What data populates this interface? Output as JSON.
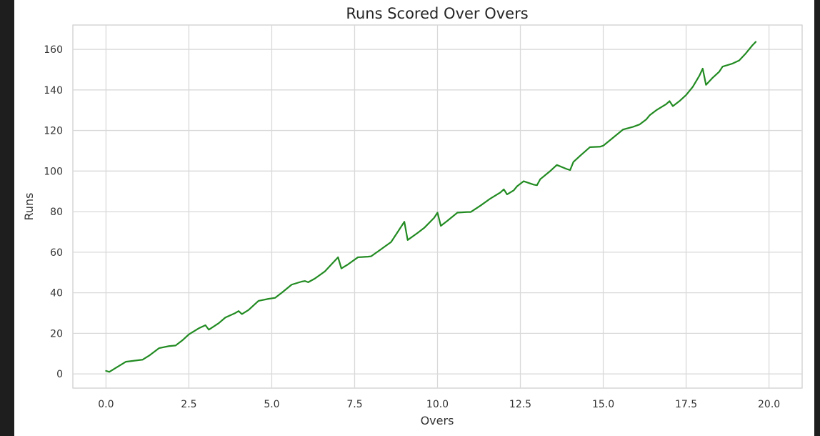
{
  "chart_data": {
    "type": "line",
    "title": "Runs Scored Over Overs",
    "xlabel": "Overs",
    "ylabel": "Runs",
    "xlim": [
      -1.0,
      21.0
    ],
    "ylim": [
      -7,
      172
    ],
    "xticks": [
      0.0,
      2.5,
      5.0,
      7.5,
      10.0,
      12.5,
      15.0,
      17.5,
      20.0
    ],
    "xtick_labels": [
      "0.0",
      "2.5",
      "5.0",
      "7.5",
      "10.0",
      "12.5",
      "15.0",
      "17.5",
      "20.0"
    ],
    "yticks": [
      0,
      20,
      40,
      60,
      80,
      100,
      120,
      140,
      160
    ],
    "ytick_labels": [
      "0",
      "20",
      "40",
      "60",
      "80",
      "100",
      "120",
      "140",
      "160"
    ],
    "grid": true,
    "legend": "none",
    "line_color": "#228b22",
    "series": [
      {
        "values": [
          [
            0.0,
            1.5
          ],
          [
            0.1,
            1.0
          ],
          [
            0.3,
            3.0
          ],
          [
            0.6,
            6.0
          ],
          [
            0.9,
            6.6
          ],
          [
            1.1,
            7.0
          ],
          [
            1.3,
            9.0
          ],
          [
            1.6,
            12.7
          ],
          [
            1.9,
            13.7
          ],
          [
            2.1,
            14.0
          ],
          [
            2.3,
            16.5
          ],
          [
            2.5,
            19.5
          ],
          [
            2.8,
            22.5
          ],
          [
            3.0,
            24.0
          ],
          [
            3.1,
            21.8
          ],
          [
            3.4,
            25.0
          ],
          [
            3.6,
            27.8
          ],
          [
            3.9,
            30.0
          ],
          [
            4.0,
            31.0
          ],
          [
            4.1,
            29.5
          ],
          [
            4.3,
            31.5
          ],
          [
            4.6,
            36.0
          ],
          [
            4.9,
            37.0
          ],
          [
            5.1,
            37.5
          ],
          [
            5.3,
            40.0
          ],
          [
            5.6,
            44.0
          ],
          [
            5.9,
            45.5
          ],
          [
            6.0,
            45.8
          ],
          [
            6.1,
            45.2
          ],
          [
            6.3,
            47.0
          ],
          [
            6.6,
            50.5
          ],
          [
            6.8,
            54.0
          ],
          [
            7.0,
            57.5
          ],
          [
            7.1,
            52.0
          ],
          [
            7.3,
            54.0
          ],
          [
            7.6,
            57.5
          ],
          [
            7.9,
            57.8
          ],
          [
            8.0,
            58.0
          ],
          [
            8.3,
            61.5
          ],
          [
            8.6,
            65.0
          ],
          [
            8.8,
            70.0
          ],
          [
            9.0,
            75.0
          ],
          [
            9.1,
            66.0
          ],
          [
            9.4,
            69.5
          ],
          [
            9.6,
            72.0
          ],
          [
            9.9,
            77.0
          ],
          [
            10.0,
            79.5
          ],
          [
            10.1,
            73.0
          ],
          [
            10.3,
            75.5
          ],
          [
            10.6,
            79.5
          ],
          [
            10.9,
            79.8
          ],
          [
            11.0,
            79.8
          ],
          [
            11.3,
            83.0
          ],
          [
            11.6,
            86.5
          ],
          [
            11.9,
            89.5
          ],
          [
            12.0,
            91.0
          ],
          [
            12.1,
            88.5
          ],
          [
            12.3,
            90.5
          ],
          [
            12.4,
            92.5
          ],
          [
            12.6,
            95.0
          ],
          [
            12.9,
            93.3
          ],
          [
            13.0,
            93.0
          ],
          [
            13.1,
            96.0
          ],
          [
            13.4,
            100.0
          ],
          [
            13.6,
            103.0
          ],
          [
            13.9,
            101.0
          ],
          [
            14.0,
            100.5
          ],
          [
            14.1,
            104.5
          ],
          [
            14.3,
            107.5
          ],
          [
            14.6,
            111.8
          ],
          [
            14.9,
            112.0
          ],
          [
            15.0,
            112.5
          ],
          [
            15.3,
            116.5
          ],
          [
            15.6,
            120.5
          ],
          [
            15.9,
            121.8
          ],
          [
            16.1,
            123.0
          ],
          [
            16.3,
            125.5
          ],
          [
            16.4,
            127.5
          ],
          [
            16.6,
            130.0
          ],
          [
            16.9,
            133.0
          ],
          [
            17.0,
            134.5
          ],
          [
            17.1,
            132.0
          ],
          [
            17.3,
            134.5
          ],
          [
            17.5,
            137.5
          ],
          [
            17.7,
            141.5
          ],
          [
            17.9,
            147.0
          ],
          [
            18.0,
            150.5
          ],
          [
            18.1,
            142.5
          ],
          [
            18.3,
            146.0
          ],
          [
            18.5,
            149.0
          ],
          [
            18.6,
            151.5
          ],
          [
            18.9,
            153.0
          ],
          [
            19.1,
            154.5
          ],
          [
            19.3,
            158.0
          ],
          [
            19.5,
            162.0
          ],
          [
            19.6,
            163.7
          ]
        ]
      }
    ]
  }
}
